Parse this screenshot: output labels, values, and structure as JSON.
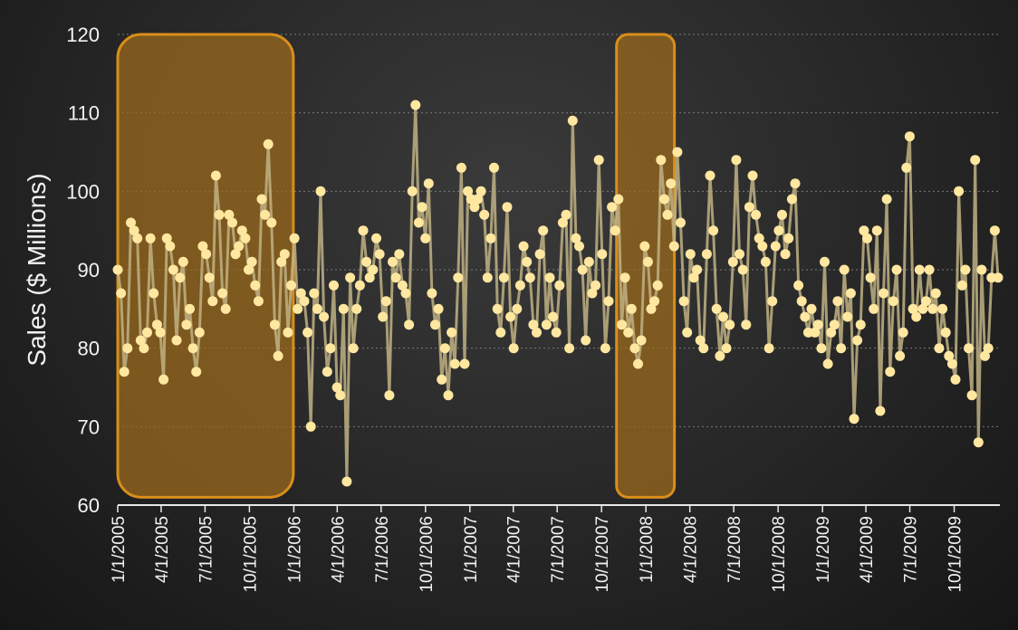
{
  "chart_data": {
    "type": "line",
    "ylabel": "Sales  ($ Millions)",
    "ylim": [
      60,
      120
    ],
    "yticks": [
      60,
      70,
      80,
      90,
      100,
      110,
      120
    ],
    "xlim": [
      "2005-01-01",
      "2009-12-31"
    ],
    "xticks": [
      "1/1/2005",
      "4/1/2005",
      "7/1/2005",
      "10/1/2005",
      "1/1/2006",
      "4/1/2006",
      "7/1/2006",
      "10/1/2006",
      "1/1/2007",
      "4/1/2007",
      "7/1/2007",
      "10/1/2007",
      "1/1/2008",
      "4/1/2008",
      "7/1/2008",
      "10/1/2008",
      "1/1/2009",
      "4/1/2009",
      "7/1/2009",
      "10/1/2009"
    ],
    "grid": true,
    "colors": {
      "line": "#bfb184",
      "point": "#ffe7a0",
      "highlight_fill": "#9a6a1c",
      "highlight_stroke": "#d98e1a"
    },
    "highlights": [
      {
        "start": "2005-01-01",
        "end": "2005-12-31",
        "ymin": 61,
        "ymax": 120
      },
      {
        "start": "2007-11-01",
        "end": "2008-02-29",
        "ymin": 61,
        "ymax": 120
      }
    ],
    "series": [
      {
        "values": [
          90,
          87,
          77,
          80,
          96,
          95,
          94,
          81,
          80,
          82,
          94,
          87,
          83,
          82,
          76,
          94,
          93,
          90,
          81,
          89,
          91,
          83,
          85,
          80,
          77,
          82,
          93,
          92,
          89,
          86,
          102,
          97,
          87,
          85,
          97,
          96,
          92,
          93,
          95,
          94,
          90,
          91,
          88,
          86,
          99,
          97,
          106,
          96,
          83,
          79,
          91,
          92,
          82,
          88,
          94,
          85,
          87,
          86,
          82,
          70,
          87,
          85,
          100,
          84,
          77,
          80,
          88,
          75,
          74,
          85,
          63,
          89,
          80,
          85,
          88,
          95,
          91,
          89,
          90,
          94,
          92,
          84,
          86,
          74,
          91,
          89,
          92,
          88,
          87,
          83,
          100,
          111,
          96,
          98,
          94,
          101,
          87,
          83,
          85,
          76,
          80,
          74,
          82,
          78,
          89,
          103,
          78,
          100,
          99,
          98,
          99,
          100,
          97,
          89,
          94,
          103,
          85,
          82,
          89,
          98,
          84,
          80,
          85,
          88,
          93,
          91,
          89,
          83,
          82,
          92,
          95,
          83,
          89,
          84,
          82,
          88,
          96,
          97,
          80,
          109,
          94,
          93,
          90,
          81,
          91,
          87,
          88,
          104,
          92,
          80,
          86,
          98,
          95,
          99,
          83,
          89,
          82,
          85,
          80,
          78,
          81,
          93,
          91,
          85,
          86,
          88,
          104,
          99,
          97,
          101,
          93,
          105,
          96,
          86,
          82,
          92,
          89,
          90,
          81,
          80,
          92,
          102,
          95,
          85,
          79,
          84,
          80,
          83,
          91,
          104,
          92,
          90,
          83,
          98,
          102,
          97,
          94,
          93,
          91,
          80,
          86,
          93,
          95,
          97,
          92,
          94,
          99,
          101,
          88,
          86,
          84,
          82,
          85,
          82,
          83,
          80,
          91,
          78,
          82,
          83,
          86,
          80,
          90,
          84,
          87,
          71,
          81,
          83,
          95,
          94,
          89,
          85,
          95,
          72,
          87,
          99,
          77,
          86,
          90,
          79,
          82,
          103,
          107,
          85,
          84,
          90,
          85,
          86,
          90,
          85,
          87,
          80,
          85,
          82,
          79,
          78,
          76,
          100,
          88,
          90,
          80,
          74,
          104,
          68,
          90,
          79,
          80,
          89,
          95,
          89
        ]
      }
    ]
  }
}
